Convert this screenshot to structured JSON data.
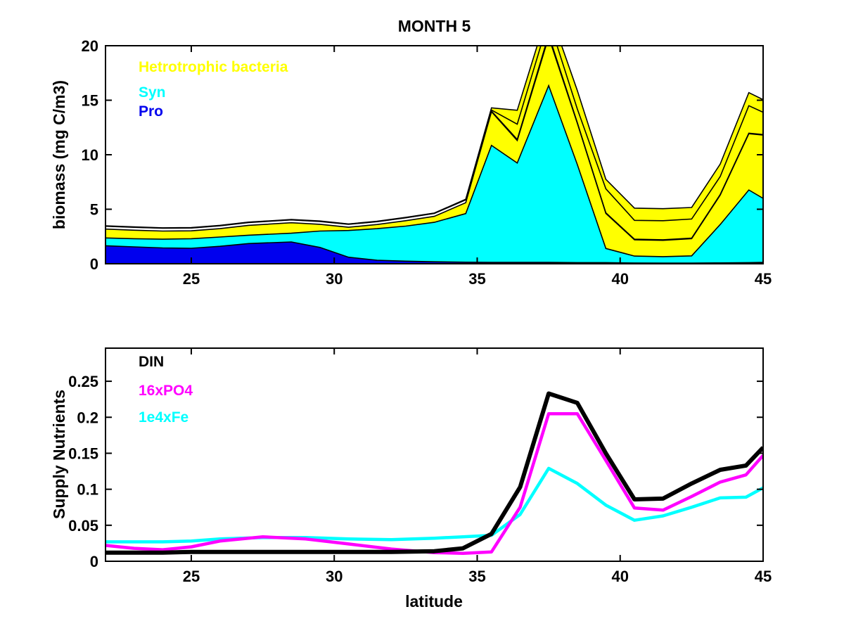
{
  "figure": {
    "title": "MONTH 5",
    "background": "#FFFFFF",
    "axis_color": "#000000"
  },
  "chart_data": [
    {
      "type": "area",
      "title": "MONTH 5",
      "ylabel": "biomass (mg C/m3)",
      "xlim": [
        22,
        45
      ],
      "ylim": [
        0,
        20
      ],
      "grid": false,
      "legend_position": "top-left-inside",
      "xticks": [
        {
          "v": 25,
          "label": "25"
        },
        {
          "v": 30,
          "label": "30"
        },
        {
          "v": 35,
          "label": "35"
        },
        {
          "v": 40,
          "label": "40"
        },
        {
          "v": 45,
          "label": "45"
        }
      ],
      "yticks": [
        {
          "v": 0,
          "label": "0"
        },
        {
          "v": 5,
          "label": "5"
        },
        {
          "v": 10,
          "label": "10"
        },
        {
          "v": 15,
          "label": "15"
        },
        {
          "v": 20,
          "label": "20"
        }
      ],
      "legend": [
        {
          "label": "Hetrotrophic bacteria",
          "color": "#FFFF00"
        },
        {
          "label": "Syn",
          "color": "#00FFFF"
        },
        {
          "label": "Pro",
          "color": "#0000EE"
        }
      ],
      "x": [
        22,
        23,
        24,
        25,
        26,
        27,
        28.5,
        29.5,
        30.5,
        31.5,
        32.5,
        33.5,
        34.6,
        35.5,
        36.4,
        37.5,
        38.5,
        39.5,
        40.5,
        41.5,
        42.5,
        43.5,
        44.5,
        45
      ],
      "layers": [
        {
          "name": "Pro",
          "fill": "#0000EE",
          "cum": [
            1.65,
            1.55,
            1.45,
            1.42,
            1.6,
            1.85,
            2.0,
            1.5,
            0.6,
            0.32,
            0.24,
            0.18,
            0.14,
            0.12,
            0.12,
            0.12,
            0.1,
            0.1,
            0.07,
            0.06,
            0.06,
            0.08,
            0.1,
            0.12
          ]
        },
        {
          "name": "Syn",
          "fill": "#00FFFF",
          "cum": [
            2.37,
            2.3,
            2.25,
            2.3,
            2.45,
            2.62,
            2.8,
            3.0,
            3.05,
            3.22,
            3.45,
            3.8,
            4.6,
            10.86,
            9.24,
            16.34,
            9.1,
            1.4,
            0.7,
            0.65,
            0.72,
            3.6,
            6.77,
            6.0
          ]
        },
        {
          "name": "Hetrotrophic bacteria",
          "fill": "#FFFF00",
          "cum": [
            3.18,
            3.08,
            3.0,
            3.02,
            3.22,
            3.52,
            3.76,
            3.62,
            3.35,
            3.6,
            3.95,
            4.35,
            5.6,
            13.95,
            11.3,
            20.8,
            12.9,
            4.62,
            2.2,
            2.15,
            2.3,
            6.3,
            11.93,
            11.8
          ]
        },
        {
          "name": "upper-band-white",
          "fill": "#FFFFFF",
          "cum": [
            3.44,
            3.34,
            3.26,
            3.28,
            3.48,
            3.78,
            4.02,
            3.88,
            3.61,
            3.86,
            4.21,
            4.61,
            5.86,
            14.0,
            11.4,
            21.0,
            12.95,
            4.67,
            2.25,
            2.2,
            2.35,
            6.35,
            11.98,
            11.85
          ]
        },
        {
          "name": "upper-band-yellow-1",
          "fill": "#FFFF00",
          "cum": [
            3.46,
            3.36,
            3.28,
            3.3,
            3.5,
            3.8,
            4.04,
            3.9,
            3.63,
            3.88,
            4.23,
            4.63,
            5.88,
            14.1,
            12.8,
            22.4,
            14.2,
            6.88,
            3.98,
            3.95,
            4.1,
            8.0,
            14.5,
            13.9
          ]
        },
        {
          "name": "upper-band-yellow-2",
          "fill": "#FFFF00",
          "cum": [
            3.48,
            3.38,
            3.3,
            3.32,
            3.52,
            3.82,
            4.06,
            3.92,
            3.65,
            3.9,
            4.25,
            4.65,
            5.92,
            14.3,
            14.08,
            23.4,
            15.9,
            7.74,
            5.1,
            5.05,
            5.16,
            9.14,
            15.7,
            15.05
          ]
        }
      ]
    },
    {
      "type": "line",
      "ylabel": "Supply Nutrients",
      "xlabel": "latitude",
      "xlim": [
        22,
        45
      ],
      "ylim": [
        0,
        0.296
      ],
      "grid": false,
      "legend_position": "top-left-inside",
      "xticks": [
        {
          "v": 25,
          "label": "25"
        },
        {
          "v": 30,
          "label": "30"
        },
        {
          "v": 35,
          "label": "35"
        },
        {
          "v": 40,
          "label": "40"
        },
        {
          "v": 45,
          "label": "45"
        }
      ],
      "yticks": [
        {
          "v": 0,
          "label": "0"
        },
        {
          "v": 0.05,
          "label": "0.05"
        },
        {
          "v": 0.1,
          "label": "0.1"
        },
        {
          "v": 0.15,
          "label": "0.15"
        },
        {
          "v": 0.2,
          "label": "0.2"
        },
        {
          "v": 0.25,
          "label": "0.25"
        }
      ],
      "legend": [
        {
          "label": "DIN",
          "color": "#000000"
        },
        {
          "label": "16xPO4",
          "color": "#FF00FF"
        },
        {
          "label": "1e4xFe",
          "color": "#00FFFF"
        }
      ],
      "x": [
        22,
        23,
        24,
        25,
        26,
        27.5,
        29,
        30.5,
        32,
        33.5,
        34.5,
        35.5,
        36.5,
        37.5,
        38.5,
        39.5,
        40.5,
        41.5,
        42.5,
        43.5,
        44.4,
        45
      ],
      "series": [
        {
          "name": "1e4xFe",
          "color": "#00FFFF",
          "width": 4.5,
          "y": [
            0.027,
            0.027,
            0.027,
            0.028,
            0.031,
            0.033,
            0.033,
            0.031,
            0.03,
            0.032,
            0.034,
            0.036,
            0.065,
            0.129,
            0.108,
            0.078,
            0.057,
            0.063,
            0.075,
            0.088,
            0.089,
            0.102
          ]
        },
        {
          "name": "16xPO4",
          "color": "#FF00FF",
          "width": 4.5,
          "y": [
            0.022,
            0.018,
            0.016,
            0.02,
            0.028,
            0.034,
            0.031,
            0.024,
            0.017,
            0.012,
            0.011,
            0.013,
            0.075,
            0.205,
            0.205,
            0.14,
            0.074,
            0.071,
            0.09,
            0.11,
            0.12,
            0.147
          ]
        },
        {
          "name": "DIN",
          "color": "#000000",
          "width": 6,
          "y": [
            0.012,
            0.012,
            0.012,
            0.013,
            0.013,
            0.013,
            0.013,
            0.013,
            0.013,
            0.014,
            0.018,
            0.038,
            0.103,
            0.233,
            0.22,
            0.15,
            0.086,
            0.087,
            0.108,
            0.127,
            0.133,
            0.158
          ]
        }
      ]
    }
  ]
}
